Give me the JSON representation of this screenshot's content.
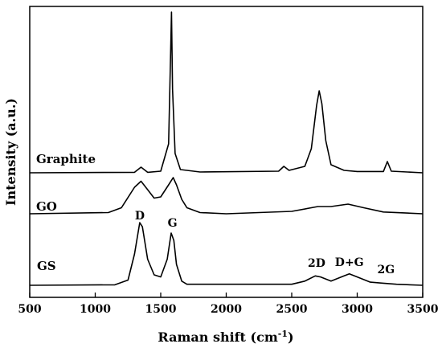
{
  "chart_data": {
    "type": "line",
    "xlabel": "Raman shift (cm",
    "xlabel_sup": "-1",
    "xlabel_close": ")",
    "ylabel": "Intensity (a.u.)",
    "xlim": [
      500,
      3500
    ],
    "xticks": [
      500,
      1000,
      1500,
      2000,
      2500,
      3000,
      3500
    ],
    "yticks_shown": false,
    "grid": false,
    "series": [
      {
        "name": "Graphite",
        "points": [
          [
            500,
            0.0
          ],
          [
            1300,
            0.003
          ],
          [
            1350,
            0.035
          ],
          [
            1400,
            0.003
          ],
          [
            1500,
            0.01
          ],
          [
            1560,
            0.18
          ],
          [
            1575,
            0.72
          ],
          [
            1582,
            1.0
          ],
          [
            1590,
            0.52
          ],
          [
            1610,
            0.12
          ],
          [
            1650,
            0.02
          ],
          [
            1800,
            0.005
          ],
          [
            2400,
            0.01
          ],
          [
            2440,
            0.04
          ],
          [
            2480,
            0.015
          ],
          [
            2600,
            0.04
          ],
          [
            2650,
            0.15
          ],
          [
            2690,
            0.42
          ],
          [
            2710,
            0.51
          ],
          [
            2730,
            0.43
          ],
          [
            2760,
            0.2
          ],
          [
            2800,
            0.05
          ],
          [
            2900,
            0.015
          ],
          [
            3000,
            0.008
          ],
          [
            3200,
            0.008
          ],
          [
            3230,
            0.07
          ],
          [
            3260,
            0.01
          ],
          [
            3500,
            0.0
          ]
        ]
      },
      {
        "name": "GO",
        "points": [
          [
            500,
            0.0
          ],
          [
            1100,
            0.01
          ],
          [
            1200,
            0.05
          ],
          [
            1300,
            0.22
          ],
          [
            1350,
            0.27
          ],
          [
            1400,
            0.2
          ],
          [
            1450,
            0.13
          ],
          [
            1500,
            0.14
          ],
          [
            1560,
            0.24
          ],
          [
            1595,
            0.3
          ],
          [
            1620,
            0.24
          ],
          [
            1660,
            0.12
          ],
          [
            1700,
            0.05
          ],
          [
            1800,
            0.01
          ],
          [
            2000,
            0.0
          ],
          [
            2500,
            0.02
          ],
          [
            2700,
            0.06
          ],
          [
            2800,
            0.06
          ],
          [
            2930,
            0.08
          ],
          [
            3050,
            0.05
          ],
          [
            3200,
            0.015
          ],
          [
            3500,
            0.0
          ]
        ]
      },
      {
        "name": "GS",
        "points": [
          [
            500,
            0.0
          ],
          [
            1150,
            0.005
          ],
          [
            1250,
            0.05
          ],
          [
            1300,
            0.3
          ],
          [
            1340,
            0.6
          ],
          [
            1360,
            0.56
          ],
          [
            1400,
            0.25
          ],
          [
            1450,
            0.1
          ],
          [
            1500,
            0.08
          ],
          [
            1550,
            0.25
          ],
          [
            1580,
            0.5
          ],
          [
            1600,
            0.43
          ],
          [
            1620,
            0.2
          ],
          [
            1660,
            0.04
          ],
          [
            1700,
            0.01
          ],
          [
            2500,
            0.01
          ],
          [
            2600,
            0.04
          ],
          [
            2680,
            0.09
          ],
          [
            2720,
            0.08
          ],
          [
            2800,
            0.04
          ],
          [
            2900,
            0.09
          ],
          [
            2940,
            0.11
          ],
          [
            3000,
            0.08
          ],
          [
            3100,
            0.03
          ],
          [
            3200,
            0.02
          ],
          [
            3300,
            0.01
          ],
          [
            3500,
            0.0
          ]
        ]
      }
    ],
    "annotations": [
      {
        "text": "D",
        "x": 1340
      },
      {
        "text": "G",
        "x": 1590
      },
      {
        "text": "2D",
        "x": 2690
      },
      {
        "text": "D+G",
        "x": 2940
      },
      {
        "text": "2G",
        "x": 3220
      }
    ]
  }
}
